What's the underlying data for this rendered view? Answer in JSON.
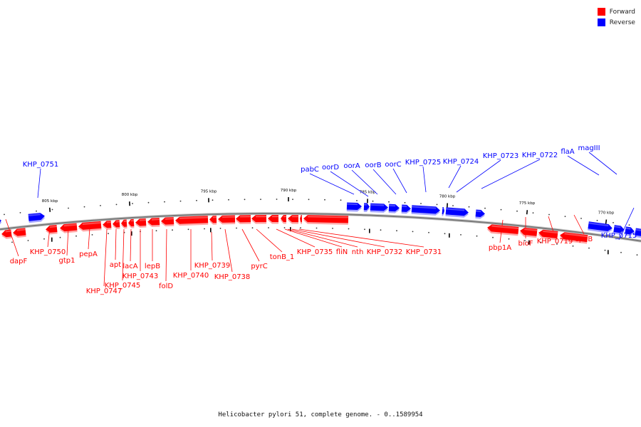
{
  "legend": {
    "items": [
      {
        "label": "Forward",
        "color": "#ff0000"
      },
      {
        "label": "Reverse",
        "color": "#0000ff"
      }
    ]
  },
  "colors": {
    "forward": "#ff0000",
    "reverse": "#0000ff",
    "backbone": "#7a7a7a",
    "tick": "#000000"
  },
  "caption": "Helicobacter pylori 51, complete genome. - 0..1589954",
  "chart_data": {
    "type": "genome-map",
    "ticks": [
      "805 kbp",
      "800 kbp",
      "795 kbp",
      "790 kbp",
      "785 kbp",
      "780 kbp",
      "775 kbp",
      "770 kbp"
    ],
    "forward_labels": [
      "dapF",
      "KHP_0750",
      "gtp1",
      "pepA",
      "KHP_0747",
      "apt",
      "KHP_0745",
      "lacA",
      "KHP_0743",
      "lepB",
      "folD",
      "KHP_0740",
      "KHP_0739",
      "KHP_0738",
      "pyrC",
      "tonB_1",
      "KHP_0735",
      "fliN",
      "nth",
      "KHP_0732",
      "KHP_0731",
      "pbp1A",
      "bioF",
      "KHP_0719",
      "spaB"
    ],
    "reverse_labels": [
      "KHP_0751",
      "pabC",
      "oorD",
      "oorA",
      "oorB",
      "oorC",
      "KHP_0725",
      "KHP_0724",
      "KHP_0723",
      "KHP_0722",
      "flaA",
      "magIII",
      "KHP_0715"
    ]
  }
}
